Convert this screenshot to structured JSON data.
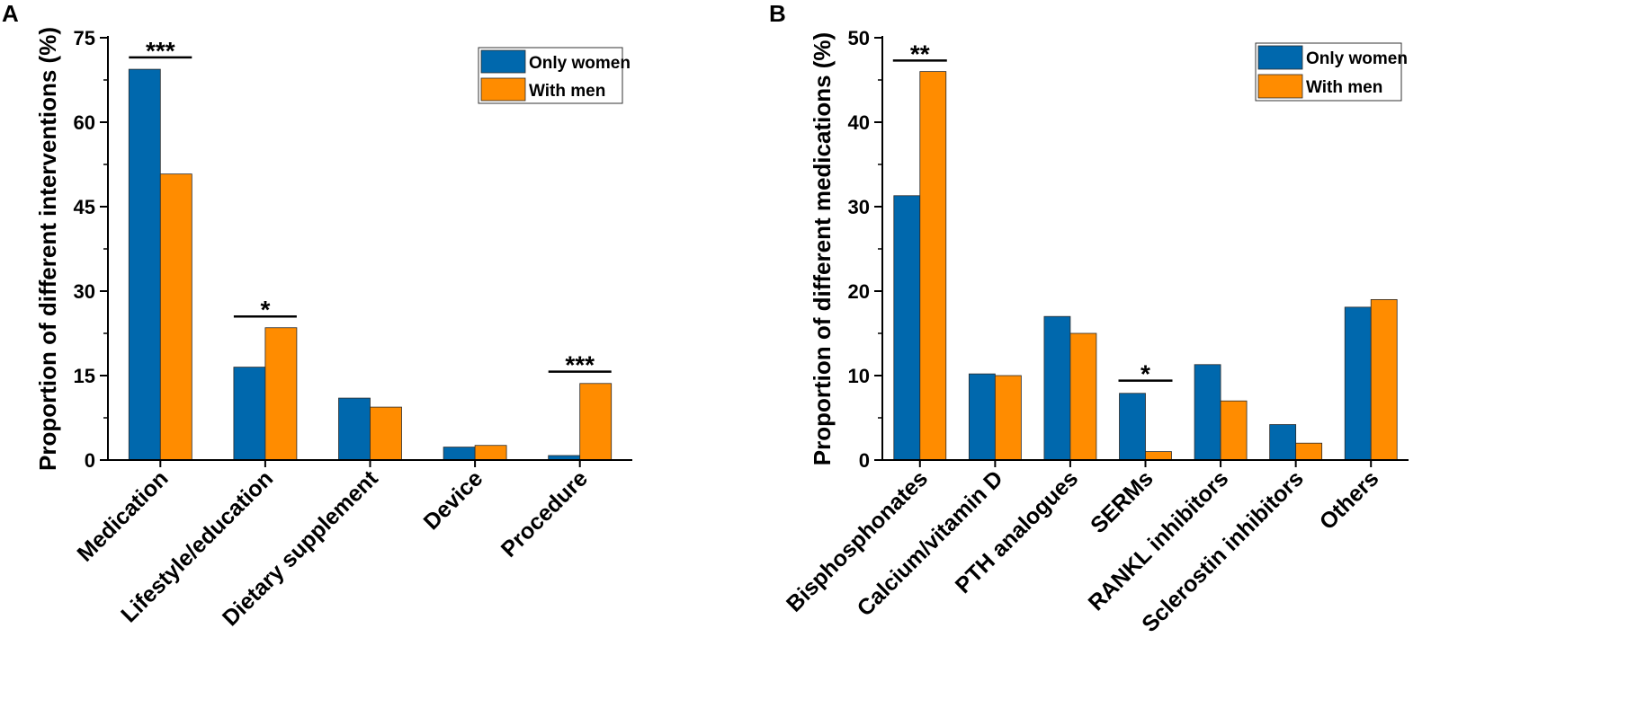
{
  "chart_data": [
    {
      "type": "bar",
      "panel": "A",
      "title": "",
      "xlabel": "",
      "ylabel": "Proportion of different interventions (%)",
      "ylim": [
        0,
        75
      ],
      "yticks": [
        0,
        15,
        30,
        45,
        60,
        75
      ],
      "categories": [
        "Medication",
        "Lifestyle/education",
        "Dietary supplement",
        "Device",
        "Procedure"
      ],
      "series": [
        {
          "name": "Only women",
          "color": "#0068AD",
          "values": [
            69.4,
            16.5,
            11.0,
            2.3,
            0.8
          ]
        },
        {
          "name": "With men",
          "color": "#FF8C00",
          "values": [
            50.8,
            23.5,
            9.4,
            2.6,
            13.6
          ]
        }
      ],
      "legend": {
        "position": "top-right",
        "entries": [
          "Only women",
          "With men"
        ]
      },
      "significance": [
        {
          "category": "Medication",
          "label": "***",
          "at": 71.5
        },
        {
          "category": "Lifestyle/education",
          "label": "*",
          "at": 25.5
        },
        {
          "category": "Procedure",
          "label": "***",
          "at": 15.7
        }
      ],
      "grid": false
    },
    {
      "type": "bar",
      "panel": "B",
      "title": "",
      "xlabel": "",
      "ylabel": "Proportion of different medications (%)",
      "ylim": [
        0,
        50
      ],
      "yticks": [
        0,
        10,
        20,
        30,
        40,
        50
      ],
      "categories": [
        "Bisphosphonates",
        "Calcium/vitamin D",
        "PTH analogues",
        "SERMs",
        "RANKL inhibitors",
        "Sclerostin inhibitors",
        "Others"
      ],
      "series": [
        {
          "name": "Only women",
          "color": "#0068AD",
          "values": [
            31.3,
            10.2,
            17.0,
            7.9,
            11.3,
            4.2,
            18.1
          ]
        },
        {
          "name": "With men",
          "color": "#FF8C00",
          "values": [
            46.0,
            10.0,
            15.0,
            1.0,
            7.0,
            2.0,
            19.0
          ]
        }
      ],
      "legend": {
        "position": "top-right",
        "entries": [
          "Only women",
          "With men"
        ]
      },
      "significance": [
        {
          "category": "Bisphosphonates",
          "label": "**",
          "at": 47.3
        },
        {
          "category": "SERMs",
          "label": "*",
          "at": 9.4
        }
      ],
      "grid": false
    }
  ]
}
